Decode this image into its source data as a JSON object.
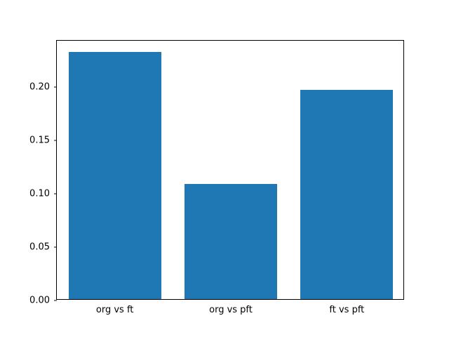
{
  "chart_data": {
    "type": "bar",
    "title": "",
    "xlabel": "",
    "ylabel": "",
    "categories": [
      "org vs ft",
      "org vs pft",
      "ft vs pft"
    ],
    "values": [
      0.232,
      0.108,
      0.196
    ],
    "ylim": [
      0,
      0.2436
    ],
    "yticks": [
      0.0,
      0.05,
      0.1,
      0.15,
      0.2
    ],
    "ytick_labels": [
      "0.00",
      "0.05",
      "0.10",
      "0.15",
      "0.20"
    ],
    "bar_color": "#1f77b4",
    "background_color": "#ffffff",
    "grid": false,
    "legend": null,
    "bar_width_fraction": 0.8
  }
}
